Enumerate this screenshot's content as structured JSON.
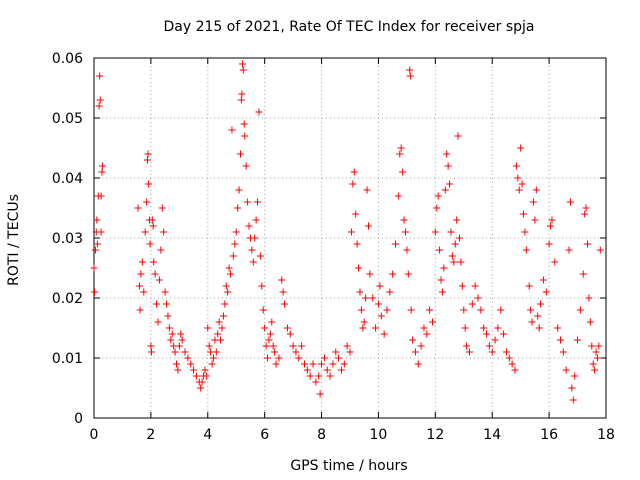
{
  "chart_data": {
    "type": "scatter",
    "title": "Day 215 of 2021, Rate Of TEC Index for receiver spja",
    "xlabel": "GPS time / hours",
    "ylabel": "ROTI / TECUs",
    "xlim": [
      0,
      18
    ],
    "ylim": [
      0,
      0.06
    ],
    "xticks": [
      0,
      2,
      4,
      6,
      8,
      10,
      12,
      14,
      16,
      18
    ],
    "xtick_labels": [
      "0",
      "2",
      "4",
      "6",
      "8",
      "10",
      "12",
      "14",
      "16",
      "18"
    ],
    "yticks": [
      0,
      0.01,
      0.02,
      0.03,
      0.04,
      0.05,
      0.06
    ],
    "ytick_labels": [
      "0",
      "0.01",
      "0.02",
      "0.03",
      "0.04",
      "0.05",
      "0.06"
    ],
    "grid": true,
    "marker": "plus",
    "series": [
      {
        "name": "ROTI",
        "color": "#ff0000",
        "points": [
          [
            0.0,
            0.025
          ],
          [
            0.02,
            0.021
          ],
          [
            0.05,
            0.028
          ],
          [
            0.08,
            0.031
          ],
          [
            0.1,
            0.033
          ],
          [
            0.12,
            0.029
          ],
          [
            0.15,
            0.037
          ],
          [
            0.18,
            0.052
          ],
          [
            0.2,
            0.057
          ],
          [
            0.22,
            0.053
          ],
          [
            0.25,
            0.037
          ],
          [
            0.28,
            0.041
          ],
          [
            0.3,
            0.042
          ],
          [
            0.25,
            0.031
          ],
          [
            1.55,
            0.035
          ],
          [
            1.6,
            0.022
          ],
          [
            1.62,
            0.018
          ],
          [
            1.65,
            0.024
          ],
          [
            1.7,
            0.026
          ],
          [
            1.75,
            0.021
          ],
          [
            1.8,
            0.031
          ],
          [
            1.85,
            0.036
          ],
          [
            1.88,
            0.043
          ],
          [
            1.9,
            0.044
          ],
          [
            1.92,
            0.039
          ],
          [
            1.95,
            0.033
          ],
          [
            1.97,
            0.029
          ],
          [
            2.0,
            0.012
          ],
          [
            2.02,
            0.011
          ],
          [
            2.05,
            0.033
          ],
          [
            2.08,
            0.032
          ],
          [
            2.1,
            0.026
          ],
          [
            2.15,
            0.024
          ],
          [
            2.2,
            0.019
          ],
          [
            2.25,
            0.016
          ],
          [
            2.3,
            0.023
          ],
          [
            2.35,
            0.028
          ],
          [
            2.4,
            0.035
          ],
          [
            2.45,
            0.031
          ],
          [
            2.5,
            0.021
          ],
          [
            2.55,
            0.019
          ],
          [
            2.6,
            0.017
          ],
          [
            2.65,
            0.015
          ],
          [
            2.7,
            0.013
          ],
          [
            2.75,
            0.014
          ],
          [
            2.8,
            0.012
          ],
          [
            2.85,
            0.011
          ],
          [
            2.9,
            0.009
          ],
          [
            2.95,
            0.008
          ],
          [
            3.0,
            0.012
          ],
          [
            3.05,
            0.014
          ],
          [
            3.1,
            0.013
          ],
          [
            3.2,
            0.011
          ],
          [
            3.3,
            0.01
          ],
          [
            3.4,
            0.009
          ],
          [
            3.5,
            0.008
          ],
          [
            3.6,
            0.007
          ],
          [
            3.7,
            0.006
          ],
          [
            3.75,
            0.005
          ],
          [
            3.8,
            0.006
          ],
          [
            3.85,
            0.007
          ],
          [
            3.9,
            0.008
          ],
          [
            3.95,
            0.007
          ],
          [
            4.0,
            0.015
          ],
          [
            4.05,
            0.012
          ],
          [
            4.1,
            0.011
          ],
          [
            4.15,
            0.009
          ],
          [
            4.2,
            0.01
          ],
          [
            4.25,
            0.013
          ],
          [
            4.3,
            0.011
          ],
          [
            4.35,
            0.014
          ],
          [
            4.4,
            0.016
          ],
          [
            4.45,
            0.013
          ],
          [
            4.5,
            0.015
          ],
          [
            4.55,
            0.017
          ],
          [
            4.6,
            0.019
          ],
          [
            4.65,
            0.022
          ],
          [
            4.7,
            0.021
          ],
          [
            4.75,
            0.025
          ],
          [
            4.8,
            0.024
          ],
          [
            4.85,
            0.048
          ],
          [
            4.9,
            0.027
          ],
          [
            4.95,
            0.029
          ],
          [
            5.0,
            0.031
          ],
          [
            5.05,
            0.035
          ],
          [
            5.1,
            0.038
          ],
          [
            5.15,
            0.044
          ],
          [
            5.18,
            0.053
          ],
          [
            5.2,
            0.054
          ],
          [
            5.22,
            0.059
          ],
          [
            5.25,
            0.058
          ],
          [
            5.28,
            0.049
          ],
          [
            5.3,
            0.047
          ],
          [
            5.35,
            0.042
          ],
          [
            5.4,
            0.036
          ],
          [
            5.45,
            0.032
          ],
          [
            5.5,
            0.03
          ],
          [
            5.55,
            0.028
          ],
          [
            5.6,
            0.026
          ],
          [
            5.65,
            0.03
          ],
          [
            5.7,
            0.033
          ],
          [
            5.75,
            0.036
          ],
          [
            5.8,
            0.051
          ],
          [
            5.85,
            0.027
          ],
          [
            5.9,
            0.022
          ],
          [
            5.95,
            0.018
          ],
          [
            6.0,
            0.015
          ],
          [
            6.05,
            0.012
          ],
          [
            6.1,
            0.01
          ],
          [
            6.15,
            0.013
          ],
          [
            6.2,
            0.014
          ],
          [
            6.25,
            0.016
          ],
          [
            6.3,
            0.012
          ],
          [
            6.35,
            0.011
          ],
          [
            6.4,
            0.009
          ],
          [
            6.5,
            0.01
          ],
          [
            6.6,
            0.023
          ],
          [
            6.65,
            0.021
          ],
          [
            6.7,
            0.019
          ],
          [
            6.8,
            0.015
          ],
          [
            6.9,
            0.014
          ],
          [
            7.0,
            0.012
          ],
          [
            7.1,
            0.011
          ],
          [
            7.2,
            0.01
          ],
          [
            7.3,
            0.012
          ],
          [
            7.4,
            0.009
          ],
          [
            7.5,
            0.008
          ],
          [
            7.6,
            0.007
          ],
          [
            7.7,
            0.009
          ],
          [
            7.8,
            0.006
          ],
          [
            7.9,
            0.007
          ],
          [
            7.95,
            0.004
          ],
          [
            8.0,
            0.009
          ],
          [
            8.1,
            0.01
          ],
          [
            8.2,
            0.008
          ],
          [
            8.3,
            0.007
          ],
          [
            8.4,
            0.009
          ],
          [
            8.5,
            0.011
          ],
          [
            8.6,
            0.01
          ],
          [
            8.7,
            0.008
          ],
          [
            8.8,
            0.009
          ],
          [
            8.9,
            0.012
          ],
          [
            9.0,
            0.011
          ],
          [
            9.05,
            0.031
          ],
          [
            9.1,
            0.039
          ],
          [
            9.15,
            0.041
          ],
          [
            9.2,
            0.034
          ],
          [
            9.25,
            0.029
          ],
          [
            9.3,
            0.025
          ],
          [
            9.35,
            0.021
          ],
          [
            9.4,
            0.018
          ],
          [
            9.45,
            0.015
          ],
          [
            9.5,
            0.016
          ],
          [
            9.55,
            0.02
          ],
          [
            9.6,
            0.038
          ],
          [
            9.65,
            0.032
          ],
          [
            9.7,
            0.024
          ],
          [
            9.8,
            0.02
          ],
          [
            9.9,
            0.015
          ],
          [
            10.0,
            0.019
          ],
          [
            10.05,
            0.022
          ],
          [
            10.1,
            0.017
          ],
          [
            10.2,
            0.014
          ],
          [
            10.3,
            0.018
          ],
          [
            10.4,
            0.021
          ],
          [
            10.5,
            0.024
          ],
          [
            10.6,
            0.029
          ],
          [
            10.7,
            0.037
          ],
          [
            10.75,
            0.044
          ],
          [
            10.8,
            0.045
          ],
          [
            10.85,
            0.041
          ],
          [
            10.9,
            0.033
          ],
          [
            10.95,
            0.031
          ],
          [
            11.0,
            0.028
          ],
          [
            11.05,
            0.024
          ],
          [
            11.1,
            0.058
          ],
          [
            11.12,
            0.057
          ],
          [
            11.15,
            0.018
          ],
          [
            11.2,
            0.013
          ],
          [
            11.3,
            0.011
          ],
          [
            11.4,
            0.009
          ],
          [
            11.5,
            0.012
          ],
          [
            11.6,
            0.015
          ],
          [
            11.7,
            0.014
          ],
          [
            11.8,
            0.018
          ],
          [
            11.9,
            0.016
          ],
          [
            12.0,
            0.031
          ],
          [
            12.05,
            0.035
          ],
          [
            12.1,
            0.037
          ],
          [
            12.15,
            0.028
          ],
          [
            12.2,
            0.023
          ],
          [
            12.25,
            0.021
          ],
          [
            12.3,
            0.025
          ],
          [
            12.35,
            0.038
          ],
          [
            12.4,
            0.044
          ],
          [
            12.45,
            0.042
          ],
          [
            12.5,
            0.039
          ],
          [
            12.55,
            0.031
          ],
          [
            12.6,
            0.027
          ],
          [
            12.65,
            0.026
          ],
          [
            12.7,
            0.029
          ],
          [
            12.75,
            0.033
          ],
          [
            12.8,
            0.047
          ],
          [
            12.85,
            0.03
          ],
          [
            12.9,
            0.026
          ],
          [
            12.95,
            0.022
          ],
          [
            13.0,
            0.018
          ],
          [
            13.05,
            0.015
          ],
          [
            13.1,
            0.012
          ],
          [
            13.2,
            0.011
          ],
          [
            13.3,
            0.019
          ],
          [
            13.4,
            0.022
          ],
          [
            13.5,
            0.02
          ],
          [
            13.6,
            0.018
          ],
          [
            13.7,
            0.015
          ],
          [
            13.8,
            0.014
          ],
          [
            13.9,
            0.012
          ],
          [
            14.0,
            0.011
          ],
          [
            14.1,
            0.013
          ],
          [
            14.2,
            0.015
          ],
          [
            14.3,
            0.018
          ],
          [
            14.4,
            0.014
          ],
          [
            14.5,
            0.011
          ],
          [
            14.6,
            0.01
          ],
          [
            14.7,
            0.009
          ],
          [
            14.8,
            0.008
          ],
          [
            14.85,
            0.042
          ],
          [
            14.9,
            0.04
          ],
          [
            14.95,
            0.038
          ],
          [
            15.0,
            0.045
          ],
          [
            15.05,
            0.039
          ],
          [
            15.1,
            0.034
          ],
          [
            15.15,
            0.031
          ],
          [
            15.2,
            0.028
          ],
          [
            15.3,
            0.022
          ],
          [
            15.35,
            0.018
          ],
          [
            15.4,
            0.016
          ],
          [
            15.45,
            0.036
          ],
          [
            15.5,
            0.033
          ],
          [
            15.55,
            0.038
          ],
          [
            15.6,
            0.017
          ],
          [
            15.65,
            0.015
          ],
          [
            15.7,
            0.019
          ],
          [
            15.8,
            0.023
          ],
          [
            15.9,
            0.021
          ],
          [
            16.0,
            0.029
          ],
          [
            16.05,
            0.032
          ],
          [
            16.1,
            0.033
          ],
          [
            16.2,
            0.026
          ],
          [
            16.3,
            0.015
          ],
          [
            16.4,
            0.013
          ],
          [
            16.5,
            0.011
          ],
          [
            16.6,
            0.008
          ],
          [
            16.7,
            0.028
          ],
          [
            16.75,
            0.036
          ],
          [
            16.8,
            0.005
          ],
          [
            16.85,
            0.003
          ],
          [
            16.9,
            0.007
          ],
          [
            17.0,
            0.013
          ],
          [
            17.1,
            0.018
          ],
          [
            17.2,
            0.024
          ],
          [
            17.25,
            0.034
          ],
          [
            17.3,
            0.035
          ],
          [
            17.35,
            0.029
          ],
          [
            17.4,
            0.02
          ],
          [
            17.45,
            0.016
          ],
          [
            17.5,
            0.012
          ],
          [
            17.55,
            0.009
          ],
          [
            17.6,
            0.008
          ],
          [
            17.65,
            0.011
          ],
          [
            17.7,
            0.01
          ],
          [
            17.75,
            0.012
          ],
          [
            17.8,
            0.028
          ]
        ]
      }
    ]
  }
}
